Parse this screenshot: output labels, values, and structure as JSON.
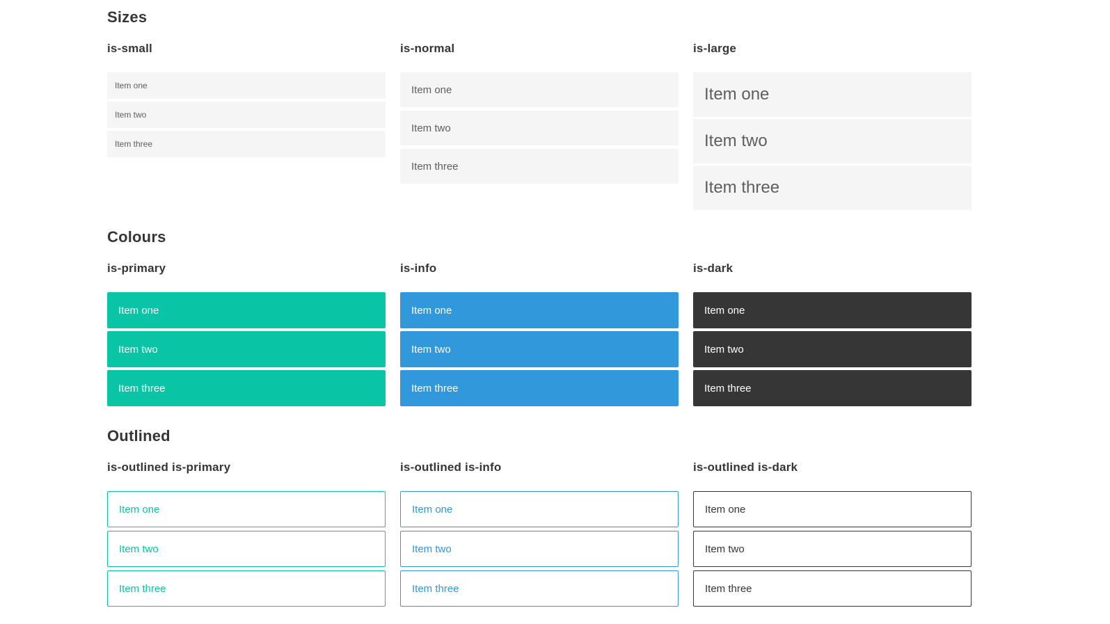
{
  "sections": [
    {
      "title": "Sizes",
      "columns": [
        {
          "heading": "is-small",
          "items": [
            "Item one",
            "Item two",
            "Item three"
          ]
        },
        {
          "heading": "is-normal",
          "items": [
            "Item one",
            "Item two",
            "Item three"
          ]
        },
        {
          "heading": "is-large",
          "items": [
            "Item one",
            "Item two",
            "Item three"
          ]
        }
      ]
    },
    {
      "title": "Colours",
      "columns": [
        {
          "heading": "is-primary",
          "items": [
            "Item one",
            "Item two",
            "Item three"
          ]
        },
        {
          "heading": "is-info",
          "items": [
            "Item one",
            "Item two",
            "Item three"
          ]
        },
        {
          "heading": "is-dark",
          "items": [
            "Item one",
            "Item two",
            "Item three"
          ]
        }
      ]
    },
    {
      "title": "Outlined",
      "columns": [
        {
          "heading": "is-outlined is-primary",
          "items": [
            "Item one",
            "Item two",
            "Item three"
          ]
        },
        {
          "heading": "is-outlined is-info",
          "items": [
            "Item one",
            "Item two",
            "Item three"
          ]
        },
        {
          "heading": "is-outlined is-dark",
          "items": [
            "Item one",
            "Item two",
            "Item three"
          ]
        }
      ]
    }
  ],
  "colors": {
    "primary": "#0ac5a5",
    "info": "#3298dc",
    "dark": "#363636",
    "item_bg": "#f5f5f5",
    "item_text": "#5e5e5e",
    "heading_text": "#363636"
  }
}
